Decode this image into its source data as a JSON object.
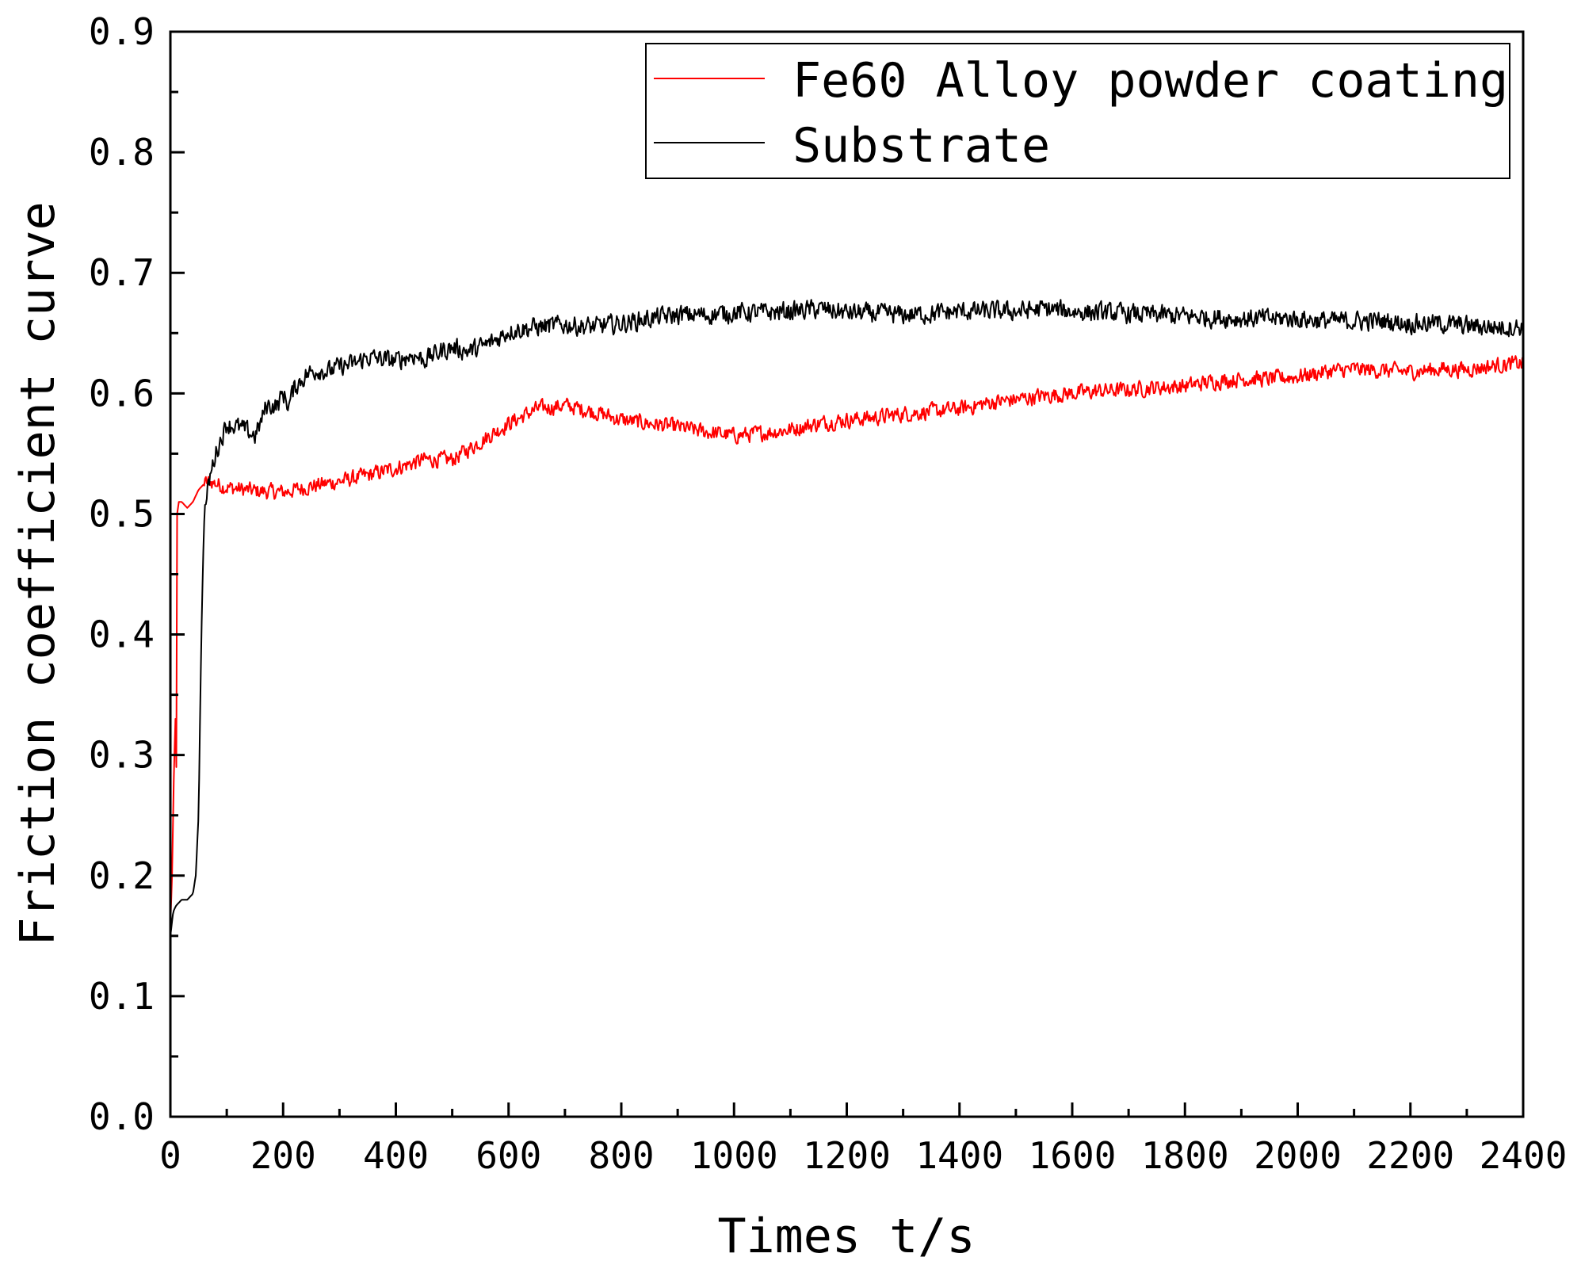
{
  "chart_data": {
    "type": "line",
    "title": "",
    "xlabel": "Times t/s",
    "ylabel": "Friction coefficient curve",
    "xlim": [
      0,
      2400
    ],
    "ylim": [
      0.0,
      0.9
    ],
    "xticks": [
      0,
      200,
      400,
      600,
      800,
      1000,
      1200,
      1400,
      1600,
      1800,
      2000,
      2200,
      2400
    ],
    "xtick_labels": [
      "0",
      "200",
      "400",
      "600",
      "800",
      "1000",
      "1200",
      "1400",
      "1600",
      "1800",
      "2000",
      "2200",
      "2400"
    ],
    "yticks": [
      0.0,
      0.1,
      0.2,
      0.3,
      0.4,
      0.5,
      0.6,
      0.7,
      0.8,
      0.9
    ],
    "ytick_labels": [
      "0.0",
      "0.1",
      "0.2",
      "0.3",
      "0.4",
      "0.5",
      "0.6",
      "0.7",
      "0.8",
      "0.9"
    ],
    "grid": false,
    "legend_position": "top-right",
    "series": [
      {
        "name": "Fe60 Alloy powder coating",
        "color": "#ff0000",
        "x": [
          0,
          3,
          6,
          9,
          10,
          12,
          15,
          20,
          30,
          40,
          50,
          60,
          70,
          100,
          150,
          200,
          250,
          300,
          350,
          400,
          450,
          500,
          550,
          600,
          650,
          700,
          750,
          800,
          850,
          900,
          950,
          1000,
          1050,
          1100,
          1150,
          1200,
          1250,
          1300,
          1350,
          1400,
          1450,
          1500,
          1550,
          1600,
          1650,
          1700,
          1750,
          1800,
          1850,
          1900,
          1950,
          2000,
          2050,
          2100,
          2150,
          2200,
          2250,
          2300,
          2350,
          2400
        ],
        "y": [
          0.16,
          0.2,
          0.28,
          0.33,
          0.22,
          0.5,
          0.51,
          0.51,
          0.505,
          0.51,
          0.52,
          0.525,
          0.527,
          0.522,
          0.519,
          0.518,
          0.523,
          0.527,
          0.532,
          0.538,
          0.545,
          0.545,
          0.56,
          0.575,
          0.587,
          0.59,
          0.585,
          0.578,
          0.575,
          0.572,
          0.568,
          0.565,
          0.567,
          0.57,
          0.575,
          0.578,
          0.58,
          0.583,
          0.585,
          0.587,
          0.592,
          0.595,
          0.598,
          0.6,
          0.602,
          0.603,
          0.605,
          0.606,
          0.61,
          0.612,
          0.612,
          0.614,
          0.618,
          0.62,
          0.619,
          0.618,
          0.62,
          0.62,
          0.623,
          0.625
        ]
      },
      {
        "name": "Substrate",
        "color": "#000000",
        "x": [
          0,
          5,
          10,
          20,
          30,
          40,
          45,
          50,
          55,
          60,
          70,
          80,
          100,
          130,
          150,
          160,
          170,
          190,
          200,
          210,
          220,
          240,
          260,
          280,
          300,
          330,
          350,
          380,
          400,
          430,
          450,
          480,
          500,
          530,
          560,
          580,
          600,
          650,
          700,
          750,
          800,
          850,
          900,
          950,
          1000,
          1050,
          1100,
          1150,
          1200,
          1250,
          1300,
          1350,
          1400,
          1450,
          1500,
          1550,
          1600,
          1650,
          1700,
          1750,
          1800,
          1850,
          1900,
          1950,
          2000,
          2050,
          2100,
          2150,
          2200,
          2250,
          2300,
          2350,
          2400
        ],
        "y": [
          0.15,
          0.17,
          0.175,
          0.18,
          0.18,
          0.185,
          0.2,
          0.25,
          0.4,
          0.5,
          0.53,
          0.55,
          0.575,
          0.57,
          0.565,
          0.575,
          0.59,
          0.59,
          0.6,
          0.59,
          0.605,
          0.615,
          0.62,
          0.618,
          0.622,
          0.625,
          0.63,
          0.628,
          0.627,
          0.632,
          0.628,
          0.635,
          0.638,
          0.635,
          0.64,
          0.645,
          0.652,
          0.655,
          0.657,
          0.655,
          0.658,
          0.662,
          0.665,
          0.665,
          0.667,
          0.667,
          0.668,
          0.67,
          0.667,
          0.666,
          0.665,
          0.666,
          0.668,
          0.668,
          0.668,
          0.67,
          0.668,
          0.667,
          0.666,
          0.665,
          0.664,
          0.663,
          0.662,
          0.662,
          0.662,
          0.66,
          0.66,
          0.66,
          0.658,
          0.658,
          0.656,
          0.655,
          0.655
        ]
      }
    ]
  }
}
